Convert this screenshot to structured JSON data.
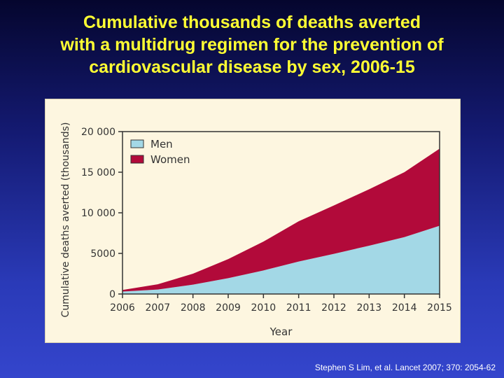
{
  "slide": {
    "title_lines": [
      "Cumulative thousands of deaths averted",
      "with a multidrug regimen for the prevention of",
      "cardiovascular disease by sex, 2006-15"
    ],
    "citation": "Stephen S Lim, et al. Lancet 2007; 370: 2054-62"
  },
  "chart_data": {
    "type": "area",
    "stacked": true,
    "x": [
      2006,
      2007,
      2008,
      2009,
      2010,
      2011,
      2012,
      2013,
      2014,
      2015
    ],
    "xlabel": "Year",
    "ylabel": "Cumulative deaths averted (thousands)",
    "ylim": [
      0,
      20000
    ],
    "yticks": [
      0,
      5000,
      10000,
      15000,
      20000
    ],
    "ytick_labels": [
      "0",
      "5000",
      "10 000",
      "15 000",
      "20 000"
    ],
    "xtick_labels": [
      "2006",
      "2007",
      "2008",
      "2009",
      "2010",
      "2011",
      "2012",
      "2013",
      "2014",
      "2015"
    ],
    "grid": false,
    "legend_position": "top-left",
    "series": [
      {
        "name": "Men",
        "color": "#a3d8e6",
        "values": [
          300,
          550,
          1150,
          1950,
          2900,
          4000,
          4950,
          5950,
          7000,
          8400
        ]
      },
      {
        "name": "Women",
        "color": "#b20a3a",
        "values": [
          200,
          650,
          1350,
          2350,
          3550,
          4950,
          5950,
          6950,
          8000,
          9500
        ]
      }
    ]
  }
}
